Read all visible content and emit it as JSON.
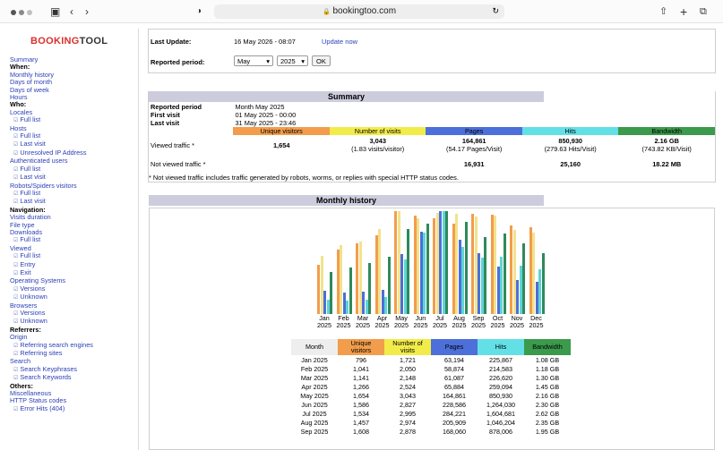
{
  "browser": {
    "url": "bookingtoo.com",
    "dot_colors": [
      "#555555",
      "#8a8a8a",
      "#c0c0c0"
    ]
  },
  "sidebar": {
    "logo_main": "BOOKING",
    "logo_tail": "TOOL",
    "items": [
      {
        "t": "Summary",
        "k": "link"
      },
      {
        "t": "When:",
        "k": "head"
      },
      {
        "t": "Monthly history",
        "k": "link"
      },
      {
        "t": "Days of month",
        "k": "link"
      },
      {
        "t": "Days of week",
        "k": "link"
      },
      {
        "t": "Hours",
        "k": "link"
      },
      {
        "t": "Who:",
        "k": "head"
      },
      {
        "t": "Locales",
        "k": "link"
      },
      {
        "t": "Full list",
        "k": "sub"
      },
      {
        "t": "Hosts",
        "k": "link"
      },
      {
        "t": "Full list",
        "k": "sub"
      },
      {
        "t": "Last visit",
        "k": "sub"
      },
      {
        "t": "Unresolved IP Address",
        "k": "sub"
      },
      {
        "t": "Authenticated users",
        "k": "link"
      },
      {
        "t": "Full list",
        "k": "sub"
      },
      {
        "t": "Last visit",
        "k": "sub"
      },
      {
        "t": "Robots/Spiders visitors",
        "k": "link"
      },
      {
        "t": "Full list",
        "k": "sub"
      },
      {
        "t": "Last visit",
        "k": "sub"
      },
      {
        "t": "Navigation:",
        "k": "head"
      },
      {
        "t": "Visits duration",
        "k": "link"
      },
      {
        "t": "File type",
        "k": "link"
      },
      {
        "t": "Downloads",
        "k": "link"
      },
      {
        "t": "Full list",
        "k": "sub"
      },
      {
        "t": "Viewed",
        "k": "link"
      },
      {
        "t": "Full list",
        "k": "sub"
      },
      {
        "t": "Entry",
        "k": "sub"
      },
      {
        "t": "Exit",
        "k": "sub"
      },
      {
        "t": "Operating Systems",
        "k": "link"
      },
      {
        "t": "Versions",
        "k": "sub"
      },
      {
        "t": "Unknown",
        "k": "sub"
      },
      {
        "t": "Browsers",
        "k": "link"
      },
      {
        "t": "Versions",
        "k": "sub"
      },
      {
        "t": "Unknown",
        "k": "sub"
      },
      {
        "t": "Referrers:",
        "k": "head"
      },
      {
        "t": "Origin",
        "k": "link"
      },
      {
        "t": "Referring search engines",
        "k": "sub"
      },
      {
        "t": "Referring sites",
        "k": "sub"
      },
      {
        "t": "Search",
        "k": "link"
      },
      {
        "t": "Search Keyphrases",
        "k": "sub"
      },
      {
        "t": "Search Keywords",
        "k": "sub"
      },
      {
        "t": "Others:",
        "k": "head"
      },
      {
        "t": "Miscellaneous",
        "k": "link"
      },
      {
        "t": "HTTP Status codes",
        "k": "link"
      },
      {
        "t": "Error Hits (404)",
        "k": "sub"
      }
    ]
  },
  "header": {
    "last_update_label": "Last Update:",
    "last_update_value": "16 May 2026 - 08:07",
    "update_now": "Update now",
    "period_label": "Reported period:",
    "month": "May",
    "year": "2025",
    "ok": "OK"
  },
  "summary": {
    "title": "Summary",
    "reported_period_label": "Reported period",
    "reported_period_value": "Month May 2025",
    "first_visit_label": "First visit",
    "first_visit_value": "01 May 2025 - 00:00",
    "last_visit_label": "Last visit",
    "last_visit_value": "31 May 2025 - 23:46",
    "headers": [
      "Unique visitors",
      "Number of visits",
      "Pages",
      "Hits",
      "Bandwidth"
    ],
    "viewed_label": "Viewed traffic *",
    "viewed": [
      "1,654",
      "3,043",
      "164,861",
      "850,930",
      "2.16 GB"
    ],
    "viewed_sub": [
      "",
      "(1.83 visits/visitor)",
      "(54.17 Pages/Visit)",
      "(279.63 Hits/Visit)",
      "(743.82 KB/Visit)"
    ],
    "not_viewed_label": "Not viewed traffic *",
    "not_viewed": [
      "",
      "",
      "16,931",
      "25,160",
      "18.22 MB"
    ],
    "note": "* Not viewed traffic includes traffic generated by robots, worms, or replies with special HTTP status codes."
  },
  "history": {
    "title": "Monthly history",
    "headers": [
      "Month",
      "Unique visitors",
      "Number of visits",
      "Pages",
      "Hits",
      "Bandwidth"
    ],
    "rows": [
      [
        "Jan 2025",
        "796",
        "1,721",
        "63,194",
        "225,867",
        "1.08 GB"
      ],
      [
        "Feb 2025",
        "1,041",
        "2,050",
        "58,874",
        "214,583",
        "1.18 GB"
      ],
      [
        "Mar 2025",
        "1,141",
        "2,148",
        "61,087",
        "226,620",
        "1.30 GB"
      ],
      [
        "Apr 2025",
        "1,266",
        "2,524",
        "65,884",
        "259,094",
        "1.45 GB"
      ],
      [
        "May 2025",
        "1,654",
        "3,043",
        "164,861",
        "850,930",
        "2.16 GB"
      ],
      [
        "Jun 2025",
        "1,586",
        "2,827",
        "228,586",
        "1,264,030",
        "2.30 GB"
      ],
      [
        "Jul 2025",
        "1,534",
        "2,995",
        "284,221",
        "1,604,681",
        "2.62 GB"
      ],
      [
        "Aug 2025",
        "1,457",
        "2,974",
        "205,909",
        "1,046,204",
        "2.35 GB"
      ],
      [
        "Sep 2025",
        "1,608",
        "2,878",
        "168,060",
        "878,006",
        "1.95 GB"
      ]
    ]
  },
  "chart_data": {
    "type": "bar",
    "categories": [
      "Jan 2025",
      "Feb 2025",
      "Mar 2025",
      "Apr 2025",
      "May 2025",
      "Jun 2025",
      "Jul 2025",
      "Aug 2025",
      "Sep 2025",
      "Oct 2025",
      "Nov 2025",
      "Dec 2025"
    ],
    "month_labels": [
      [
        "Jan",
        "2025"
      ],
      [
        "Feb",
        "2025"
      ],
      [
        "Mar",
        "2025"
      ],
      [
        "Apr",
        "2025"
      ],
      [
        "May",
        "2025"
      ],
      [
        "Jun",
        "2025"
      ],
      [
        "Jul",
        "2025"
      ],
      [
        "Aug",
        "2025"
      ],
      [
        "Sep",
        "2025"
      ],
      [
        "Oct",
        "2025"
      ],
      [
        "Nov",
        "2025"
      ],
      [
        "Dec",
        "2025"
      ]
    ],
    "series": [
      {
        "name": "Unique visitors",
        "color": "#f29d4b",
        "values": [
          796,
          1041,
          1141,
          1266,
          1654,
          1586,
          1534,
          1457,
          1608,
          1600,
          1420,
          1390
        ]
      },
      {
        "name": "Number of visits",
        "color": "#f2e28d",
        "values": [
          1721,
          2050,
          2148,
          2524,
          3043,
          2827,
          2995,
          2974,
          2878,
          2910,
          2480,
          2400
        ]
      },
      {
        "name": "Pages",
        "color": "#4c6fd9",
        "values": [
          63194,
          58874,
          61087,
          65884,
          164861,
          228586,
          284221,
          205909,
          168060,
          130000,
          95000,
          90000
        ]
      },
      {
        "name": "Hits",
        "color": "#5fd4d8",
        "values": [
          225867,
          214583,
          226620,
          259094,
          850930,
          1264030,
          1604681,
          1046204,
          878006,
          900000,
          760000,
          700000
        ]
      },
      {
        "name": "Bandwidth",
        "color": "#2e8a5a",
        "values": [
          1.08,
          1.18,
          1.3,
          1.45,
          2.16,
          2.3,
          2.62,
          2.35,
          1.95,
          2.05,
          1.8,
          1.55
        ]
      }
    ]
  },
  "colors": {
    "visitors": "#f29d4b",
    "visits": "#f2ec4a",
    "pages": "#4c6fd9",
    "hits": "#62e0e6",
    "bandwidth": "#3b9a4c"
  }
}
